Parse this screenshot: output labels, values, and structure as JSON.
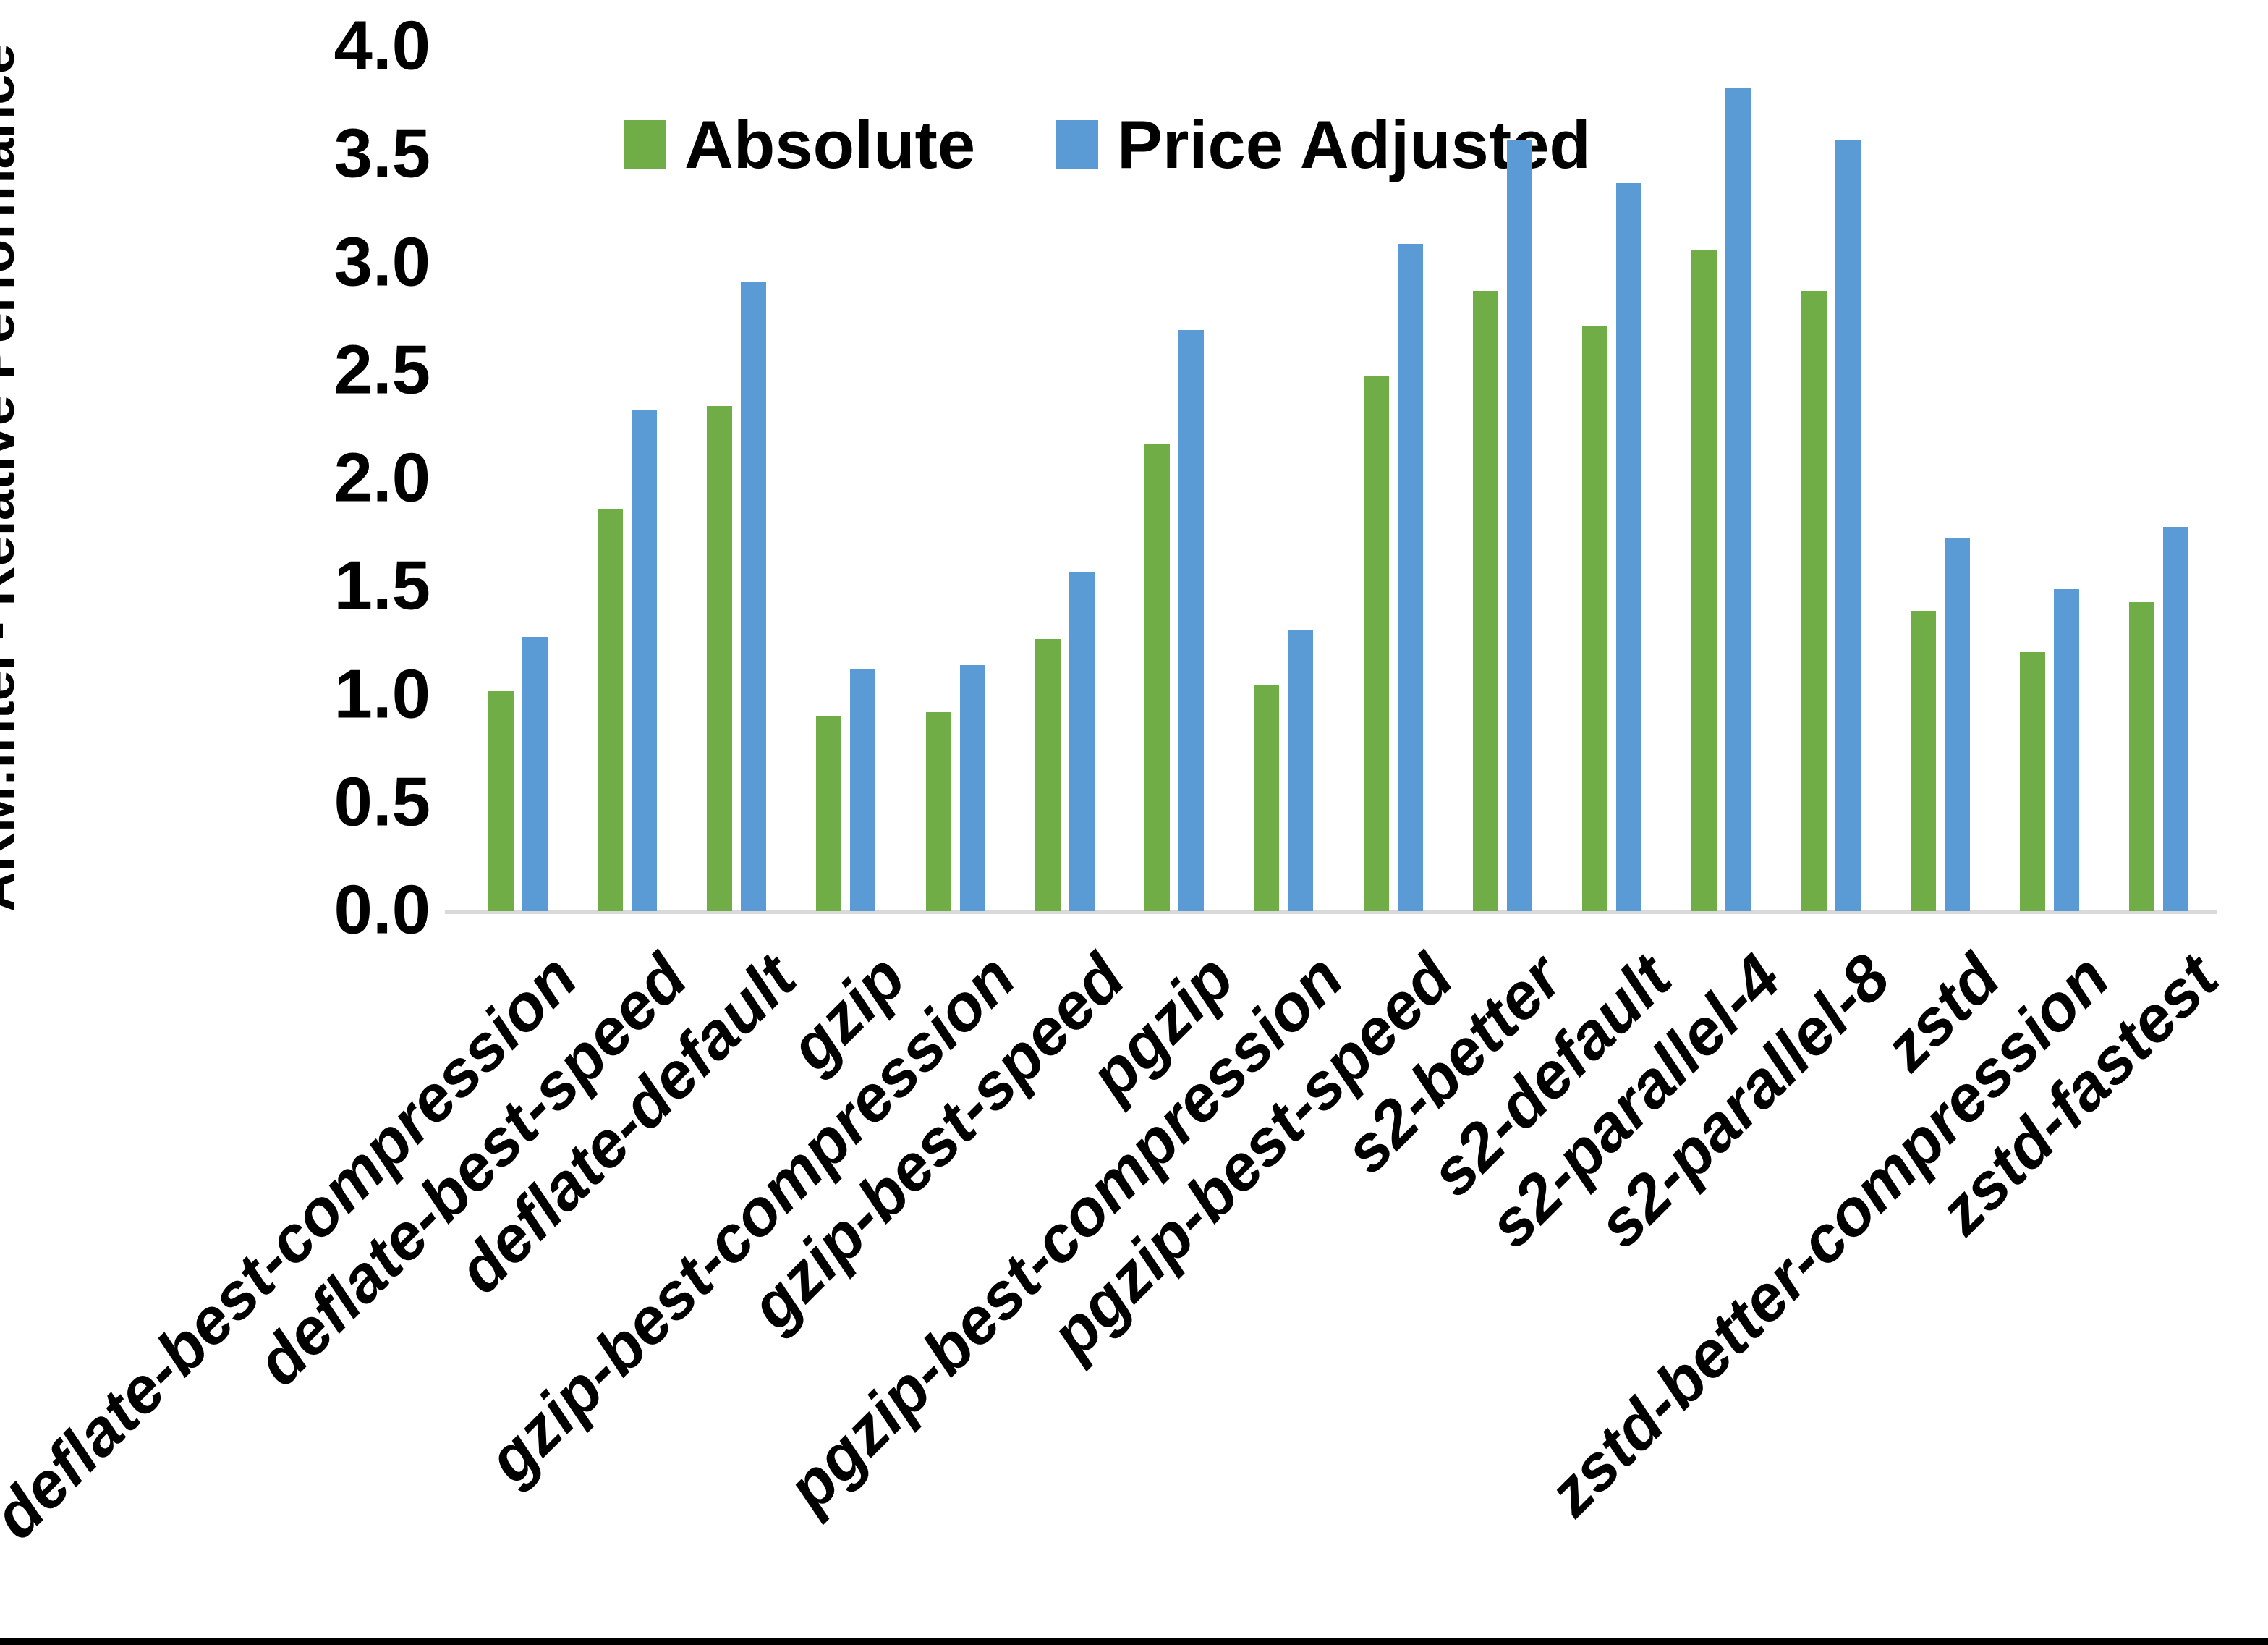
{
  "chart_data": {
    "type": "bar",
    "title": "",
    "xlabel": "",
    "ylabel": "ARM:Intel - Relative Performance",
    "ylim": [
      0.0,
      4.0
    ],
    "ytick_step": 0.5,
    "ytick_labels": [
      "0.0",
      "0.5",
      "1.0",
      "1.5",
      "2.0",
      "2.5",
      "3.0",
      "3.5",
      "4.0"
    ],
    "grid": false,
    "legend_position": "top-center",
    "categories": [
      "deflate-best-compression",
      "deflate-best-speed",
      "deflate-default",
      "gzip",
      "gzip-best-compression",
      "gzip-best-speed",
      "pgzip",
      "pgzip-best-compression",
      "pgzip-best-speed",
      "s2-better",
      "s2-default",
      "s2-parallel-4",
      "s2-parallel-8",
      "zstd",
      "zstd-better-compression",
      "zstd-fastest"
    ],
    "series": [
      {
        "name": "Absolute",
        "color": "#70AD47",
        "values": [
          1.02,
          1.86,
          2.34,
          0.9,
          0.92,
          1.26,
          2.16,
          1.05,
          2.48,
          2.87,
          2.71,
          3.06,
          2.87,
          1.39,
          1.2,
          1.43
        ]
      },
      {
        "name": "Price Adjusted",
        "color": "#5B9BD5",
        "values": [
          1.27,
          2.32,
          2.91,
          1.12,
          1.14,
          1.57,
          2.69,
          1.3,
          3.09,
          3.57,
          3.37,
          3.81,
          3.57,
          1.73,
          1.49,
          1.78
        ]
      }
    ],
    "colors": {
      "axis_line": "#D9D9D9",
      "text": "#000000",
      "background": "#FFFFFF",
      "bottom_border": "#000000"
    }
  }
}
